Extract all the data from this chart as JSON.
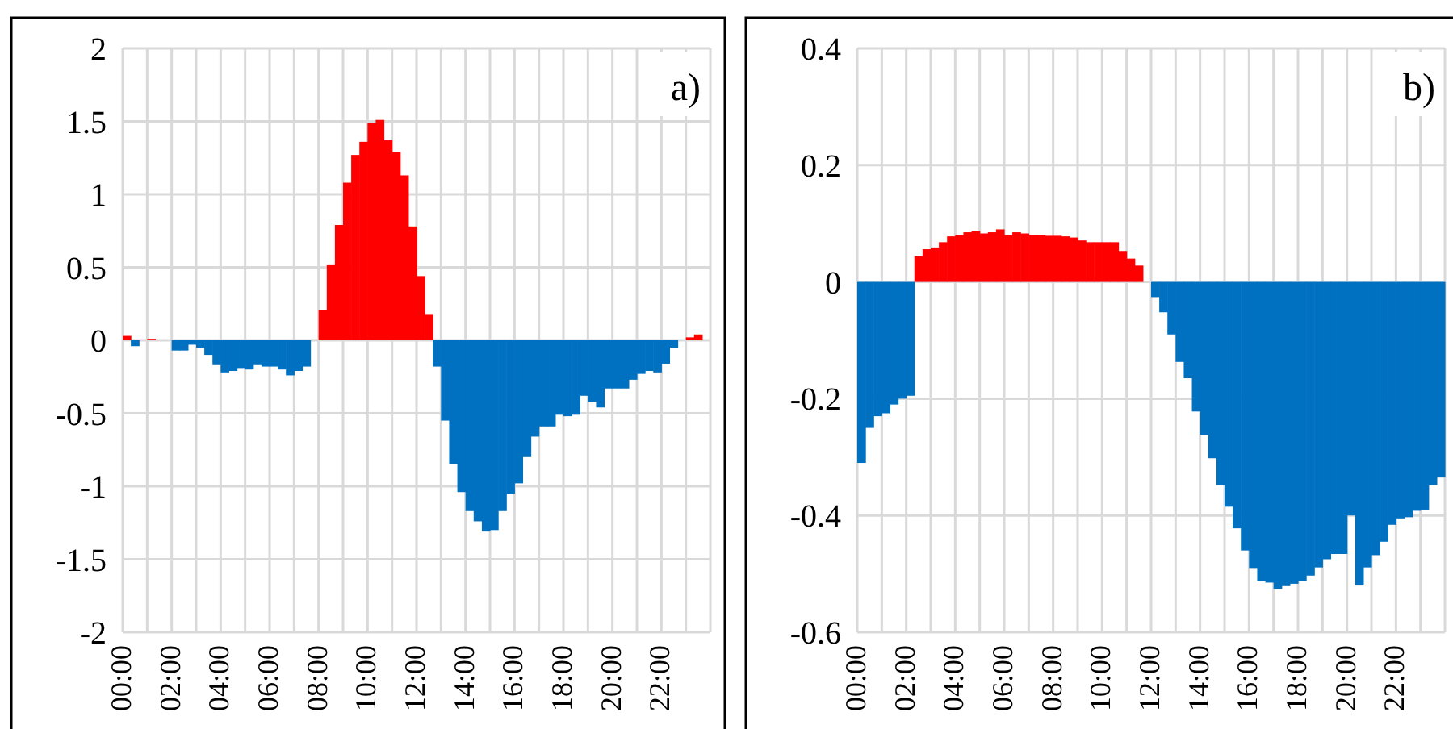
{
  "chart_data": [
    {
      "type": "bar",
      "annotations": [
        "a)"
      ],
      "categories": [
        "00:00",
        null,
        null,
        null,
        null,
        null,
        "02:00",
        null,
        null,
        null,
        null,
        null,
        "04:00",
        null,
        null,
        null,
        null,
        null,
        "06:00",
        null,
        null,
        null,
        null,
        null,
        "08:00",
        null,
        null,
        null,
        null,
        null,
        "10:00",
        null,
        null,
        null,
        null,
        null,
        "12:00",
        null,
        null,
        null,
        null,
        null,
        "14:00",
        null,
        null,
        null,
        null,
        null,
        "16:00",
        null,
        null,
        null,
        null,
        null,
        "18:00",
        null,
        null,
        null,
        null,
        null,
        "20:00",
        null,
        null,
        null,
        null,
        null,
        "22:00",
        null,
        null,
        null,
        null,
        null
      ],
      "values": [
        0.03,
        -0.04,
        0,
        0.01,
        0,
        0,
        -0.07,
        -0.07,
        -0.03,
        -0.05,
        -0.1,
        -0.17,
        -0.22,
        -0.21,
        -0.19,
        -0.2,
        -0.17,
        -0.18,
        -0.18,
        -0.2,
        -0.24,
        -0.21,
        -0.18,
        0,
        0.21,
        0.52,
        0.79,
        1.08,
        1.27,
        1.36,
        1.49,
        1.51,
        1.37,
        1.29,
        1.13,
        0.78,
        0.44,
        0.18,
        -0.18,
        -0.55,
        -0.85,
        -1.04,
        -1.17,
        -1.24,
        -1.31,
        -1.3,
        -1.17,
        -1.05,
        -0.98,
        -0.8,
        -0.66,
        -0.59,
        -0.59,
        -0.51,
        -0.52,
        -0.51,
        -0.38,
        -0.42,
        -0.46,
        -0.33,
        -0.33,
        -0.33,
        -0.27,
        -0.23,
        -0.21,
        -0.22,
        -0.16,
        -0.05,
        0,
        0.02,
        0.04,
        0
      ],
      "colors": [
        "#ff0000",
        "#0070c0",
        "#0070c0",
        "#ff0000",
        "#0070c0",
        "#0070c0",
        "#0070c0",
        "#0070c0",
        "#0070c0",
        "#0070c0",
        "#0070c0",
        "#0070c0",
        "#0070c0",
        "#0070c0",
        "#0070c0",
        "#0070c0",
        "#0070c0",
        "#0070c0",
        "#0070c0",
        "#0070c0",
        "#0070c0",
        "#0070c0",
        "#0070c0",
        "#0070c0",
        "#ff0000",
        "#ff0000",
        "#ff0000",
        "#ff0000",
        "#ff0000",
        "#ff0000",
        "#ff0000",
        "#ff0000",
        "#ff0000",
        "#ff0000",
        "#ff0000",
        "#ff0000",
        "#ff0000",
        "#ff0000",
        "#0070c0",
        "#0070c0",
        "#0070c0",
        "#0070c0",
        "#0070c0",
        "#0070c0",
        "#0070c0",
        "#0070c0",
        "#0070c0",
        "#0070c0",
        "#0070c0",
        "#0070c0",
        "#0070c0",
        "#0070c0",
        "#0070c0",
        "#0070c0",
        "#0070c0",
        "#0070c0",
        "#0070c0",
        "#0070c0",
        "#0070c0",
        "#0070c0",
        "#0070c0",
        "#0070c0",
        "#0070c0",
        "#0070c0",
        "#0070c0",
        "#0070c0",
        "#0070c0",
        "#0070c0",
        "#0070c0",
        "#ff0000",
        "#ff0000",
        "#ff0000"
      ],
      "ylim": [
        -2,
        2
      ],
      "yticks": [
        -2,
        -1.5,
        -1,
        -0.5,
        0,
        0.5,
        1,
        1.5,
        2
      ],
      "grid": true
    },
    {
      "type": "bar",
      "annotations": [
        "b)"
      ],
      "categories": [
        "00:00",
        null,
        null,
        null,
        null,
        null,
        "02:00",
        null,
        null,
        null,
        null,
        null,
        "04:00",
        null,
        null,
        null,
        null,
        null,
        "06:00",
        null,
        null,
        null,
        null,
        null,
        "08:00",
        null,
        null,
        null,
        null,
        null,
        "10:00",
        null,
        null,
        null,
        null,
        null,
        "12:00",
        null,
        null,
        null,
        null,
        null,
        "14:00",
        null,
        null,
        null,
        null,
        null,
        "16:00",
        null,
        null,
        null,
        null,
        null,
        "18:00",
        null,
        null,
        null,
        null,
        null,
        "20:00",
        null,
        null,
        null,
        null,
        null,
        "22:00",
        null,
        null,
        null,
        null,
        null
      ],
      "values": [
        -0.31,
        -0.25,
        -0.23,
        -0.225,
        -0.21,
        -0.2,
        -0.195,
        0.044,
        0.056,
        0.059,
        0.068,
        0.078,
        0.08,
        0.085,
        0.087,
        0.083,
        0.085,
        0.09,
        0.08,
        0.085,
        0.083,
        0.08,
        0.08,
        0.079,
        0.079,
        0.078,
        0.076,
        0.071,
        0.068,
        0.068,
        0.068,
        0.068,
        0.053,
        0.04,
        0.028,
        0,
        -0.026,
        -0.052,
        -0.09,
        -0.137,
        -0.165,
        -0.222,
        -0.262,
        -0.302,
        -0.348,
        -0.385,
        -0.422,
        -0.46,
        -0.49,
        -0.513,
        -0.515,
        -0.526,
        -0.521,
        -0.517,
        -0.512,
        -0.503,
        -0.489,
        -0.475,
        -0.466,
        -0.466,
        -0.4,
        -0.52,
        -0.489,
        -0.468,
        -0.445,
        -0.416,
        -0.405,
        -0.403,
        -0.392,
        -0.39,
        -0.348,
        -0.335
      ],
      "colors": [
        "#0070c0",
        "#0070c0",
        "#0070c0",
        "#0070c0",
        "#0070c0",
        "#0070c0",
        "#0070c0",
        "#ff0000",
        "#ff0000",
        "#ff0000",
        "#ff0000",
        "#ff0000",
        "#ff0000",
        "#ff0000",
        "#ff0000",
        "#ff0000",
        "#ff0000",
        "#ff0000",
        "#ff0000",
        "#ff0000",
        "#ff0000",
        "#ff0000",
        "#ff0000",
        "#ff0000",
        "#ff0000",
        "#ff0000",
        "#ff0000",
        "#ff0000",
        "#ff0000",
        "#ff0000",
        "#ff0000",
        "#ff0000",
        "#ff0000",
        "#ff0000",
        "#ff0000",
        "#ff0000",
        "#0070c0",
        "#0070c0",
        "#0070c0",
        "#0070c0",
        "#0070c0",
        "#0070c0",
        "#0070c0",
        "#0070c0",
        "#0070c0",
        "#0070c0",
        "#0070c0",
        "#0070c0",
        "#0070c0",
        "#0070c0",
        "#0070c0",
        "#0070c0",
        "#0070c0",
        "#0070c0",
        "#0070c0",
        "#0070c0",
        "#0070c0",
        "#0070c0",
        "#0070c0",
        "#0070c0",
        "#0070c0",
        "#0070c0",
        "#0070c0",
        "#0070c0",
        "#0070c0",
        "#0070c0",
        "#0070c0",
        "#0070c0",
        "#0070c0",
        "#0070c0",
        "#0070c0",
        "#0070c0"
      ],
      "ylim": [
        -0.6,
        0.4
      ],
      "yticks": [
        -0.6,
        -0.4,
        -0.2,
        0,
        0.2,
        0.4
      ],
      "grid": true
    }
  ]
}
